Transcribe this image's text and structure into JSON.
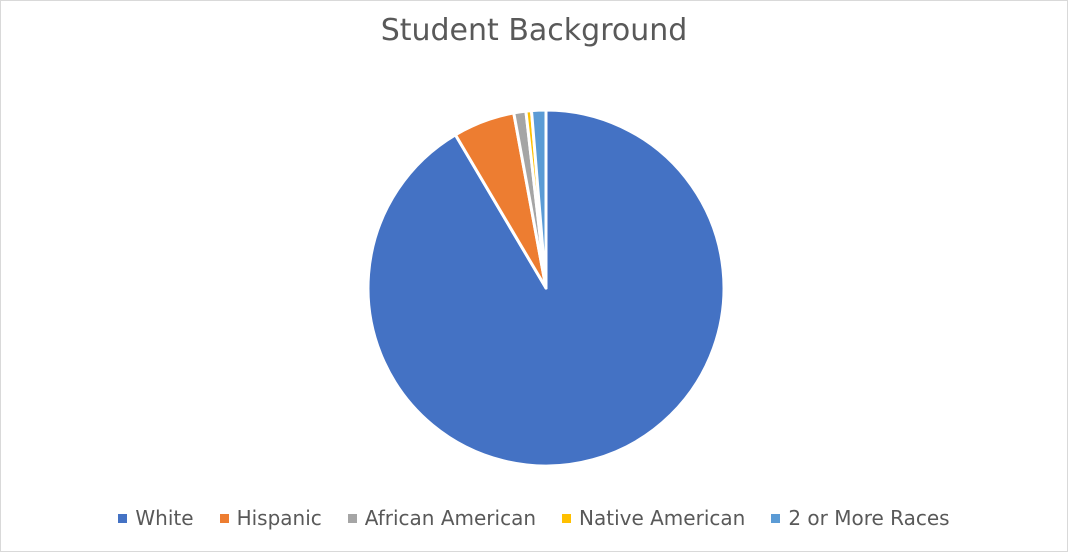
{
  "chart_data": {
    "type": "pie",
    "title": "Student Background",
    "legend_position": "bottom",
    "categories": [
      "White",
      "Hispanic",
      "African American",
      "Native American",
      "2 or More Races"
    ],
    "values": [
      91.5,
      5.6,
      1.1,
      0.5,
      1.3
    ],
    "colors": [
      "#4472c4",
      "#ed7d31",
      "#a5a5a5",
      "#ffc000",
      "#5b9bd5"
    ]
  }
}
